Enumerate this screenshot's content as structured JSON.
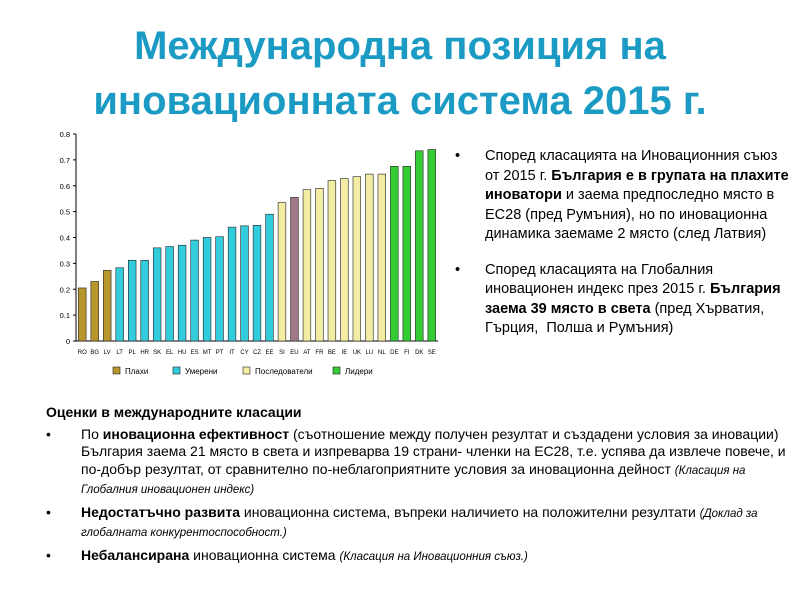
{
  "title": {
    "line1": "Международна позиция на",
    "line2": "иновационната система 2015 г."
  },
  "chart_data": {
    "type": "bar",
    "ylim": [
      0,
      0.8
    ],
    "yticks": [
      "0",
      "0.1",
      "0.2",
      "0.3",
      "0.4",
      "0.5",
      "0.6",
      "0.7",
      "0.8"
    ],
    "grid": false,
    "legend_position": "bottom",
    "categories": [
      "RO",
      "BG",
      "LV",
      "LT",
      "PL",
      "HR",
      "SK",
      "EL",
      "HU",
      "ES",
      "MT",
      "PT",
      "IT",
      "CY",
      "CZ",
      "EE",
      "SI",
      "EU",
      "AT",
      "FR",
      "BE",
      "IE",
      "UK",
      "LU",
      "NL",
      "DE",
      "FI",
      "DK",
      "SE"
    ],
    "values": [
      0.205,
      0.23,
      0.273,
      0.283,
      0.312,
      0.312,
      0.36,
      0.365,
      0.37,
      0.39,
      0.4,
      0.403,
      0.44,
      0.445,
      0.447,
      0.49,
      0.535,
      0.555,
      0.585,
      0.59,
      0.62,
      0.628,
      0.635,
      0.645,
      0.645,
      0.675,
      0.675,
      0.735,
      0.74
    ],
    "groups": [
      "Плахи",
      "Плахи",
      "Плахи",
      "Умерени",
      "Умерени",
      "Умерени",
      "Умерени",
      "Умерени",
      "Умерени",
      "Умерени",
      "Умерени",
      "Умерени",
      "Умерени",
      "Умерени",
      "Умерени",
      "Умерени",
      "Последователи",
      "EU",
      "Последователи",
      "Последователи",
      "Последователи",
      "Последователи",
      "Последователи",
      "Последователи",
      "Последователи",
      "Лидери",
      "Лидери",
      "Лидери",
      "Лидери"
    ],
    "legend": [
      {
        "name": "Плахи",
        "color": "#b8962e"
      },
      {
        "name": "Умерени",
        "color": "#33ccdd"
      },
      {
        "name": "Последователи",
        "color": "#f2eda3"
      },
      {
        "name": "Лидери",
        "color": "#33cc33"
      }
    ],
    "eu_color": "#a07888"
  },
  "bullets": [
    {
      "pre": "Според класацията на Иновационния съюз от 2015 г. ",
      "bold": "България е в групата на плахите иноватори",
      "post": " и заема предпоследно място в ЕС28 (пред Румъния), но по иновационна динамика заемаме 2 място (след Латвия)"
    },
    {
      "pre": "Според класацията на Глобалния иновационен индекс през 2015 г. ",
      "bold": "България заема 39 място в света",
      "post": " (пред Хърватия, Гърция,  Полша и Румъния)"
    }
  ],
  "assessments": {
    "heading": "Оценки в международните класации",
    "items": [
      {
        "pre": "По ",
        "bold": "иновационна ефективност",
        "post": " (съотношение между получен резултат и създадени условия за иновации) България заема 21 място в света и изпреварва 19 страни- членки на ЕС28, т.е. успява да извлече повече, и по-добър резултат, от сравнително по-неблагоприятните условия за иновационна дейност ",
        "source": "(Класация на Глобалния иновационен индекс)"
      },
      {
        "pre": "",
        "bold": "Недостатъчно развита",
        "post": " иновационна система, въпреки наличието на положителни резултати ",
        "source": "(Доклад за глобалната конкурентоспособност.)"
      },
      {
        "pre": "",
        "bold": "Небалансирана",
        "post": " иновационна система ",
        "source": "(Класация на Иновационния съюз.)"
      }
    ]
  }
}
